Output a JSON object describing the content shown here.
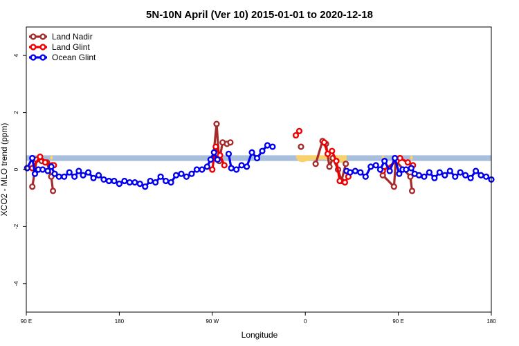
{
  "chart_data": {
    "type": "line",
    "title": "5N-10N April (Ver 10)   2015-01-01 to 2020-12-18",
    "xlabel": "Longitude",
    "ylabel": "XCO2 - MLO trend (ppm)",
    "xlim": [
      -90,
      180
    ],
    "ylim": [
      -5,
      5
    ],
    "x_ticks": [
      {
        "value": -90,
        "label": "90 E"
      },
      {
        "value": -36,
        "label": "180"
      },
      {
        "value": 18,
        "label": "90 W"
      },
      {
        "value": 72,
        "label": "0"
      },
      {
        "value": 126,
        "label": "90 E"
      },
      {
        "value": 180,
        "label": "180"
      }
    ],
    "y_ticks": [
      -4,
      -2,
      0,
      2,
      4
    ],
    "legend_position": "top-left",
    "band": {
      "y_low": 0.3,
      "y_high": 0.5,
      "color": "#a7bedd"
    },
    "highlight_color": "#f8d16c",
    "series": [
      {
        "name": "Land Nadir",
        "color": "#a52a2a",
        "segments": [
          [
            [
              -86.5,
              -0.6
            ],
            [
              -84,
              0.35
            ],
            [
              -81,
              0.3
            ],
            [
              -78,
              0.25
            ],
            [
              -75.5,
              -0.25
            ],
            [
              -74.5,
              -0.75
            ]
          ],
          [
            [
              18.5,
              0.4
            ],
            [
              20.5,
              1.6
            ],
            [
              22,
              0.3
            ],
            [
              24,
              0.95
            ],
            [
              26.5,
              0.9
            ],
            [
              28.5,
              0.95
            ]
          ],
          [
            [
              69.5,
              0.8
            ]
          ],
          [
            [
              78,
              0.2
            ],
            [
              82,
              1.0
            ],
            [
              84,
              0.9
            ],
            [
              86,
              0.1
            ],
            [
              88,
              0.4
            ],
            [
              91,
              0.0
            ],
            [
              93,
              -0.4
            ],
            [
              95.5,
              0.2
            ]
          ],
          [
            [
              117,
              -0.2
            ],
            [
              123.5,
              -0.6
            ],
            [
              124.5,
              0.3
            ],
            [
              133,
              -0.25
            ],
            [
              134,
              -0.75
            ]
          ]
        ]
      },
      {
        "name": "Land Glint",
        "color": "#ee0000",
        "segments": [
          [
            [
              -86.5,
              0.05
            ],
            [
              -82,
              0.45
            ],
            [
              -79,
              0.25
            ],
            [
              -75,
              0.15
            ],
            [
              -74,
              0.15
            ]
          ],
          [
            [
              18,
              0.0
            ],
            [
              20,
              0.8
            ],
            [
              22.5,
              0.5
            ],
            [
              25,
              0.15
            ]
          ],
          [
            [
              66.5,
              1.2
            ],
            [
              68.5,
              1.35
            ]
          ],
          [
            [
              83,
              0.95
            ],
            [
              85,
              0.55
            ],
            [
              87.5,
              0.65
            ],
            [
              90,
              0.3
            ],
            [
              92,
              -0.4
            ],
            [
              95,
              -0.45
            ],
            [
              97,
              -0.25
            ]
          ],
          [
            [
              117,
              -0.05
            ],
            [
              125,
              0.3
            ],
            [
              127,
              0.4
            ],
            [
              131.5,
              0.25
            ],
            [
              134.5,
              0.15
            ]
          ]
        ]
      },
      {
        "name": "Ocean Glint",
        "color": "#0000ee",
        "segments": [
          [
            [
              -89.5,
              0.05
            ],
            [
              -86.5,
              0.4
            ],
            [
              -85,
              -0.15
            ],
            [
              -83,
              0.0
            ],
            [
              -80.5,
              0.0
            ],
            [
              -77.5,
              -0.05
            ],
            [
              -75.5,
              0.1
            ],
            [
              -73.5,
              -0.15
            ],
            [
              -71,
              -0.25
            ],
            [
              -68,
              -0.25
            ],
            [
              -65,
              -0.1
            ],
            [
              -62,
              -0.25
            ],
            [
              -59.5,
              -0.05
            ],
            [
              -57,
              -0.2
            ],
            [
              -54,
              -0.1
            ],
            [
              -51,
              -0.3
            ],
            [
              -48,
              -0.2
            ],
            [
              -45,
              -0.35
            ],
            [
              -42,
              -0.4
            ],
            [
              -39,
              -0.4
            ],
            [
              -36,
              -0.5
            ],
            [
              -33,
              -0.4
            ],
            [
              -30,
              -0.45
            ],
            [
              -27,
              -0.45
            ],
            [
              -24,
              -0.5
            ],
            [
              -21,
              -0.6
            ],
            [
              -18,
              -0.4
            ],
            [
              -15,
              -0.45
            ],
            [
              -12,
              -0.25
            ],
            [
              -9,
              -0.4
            ],
            [
              -6,
              -0.45
            ],
            [
              -3,
              -0.2
            ],
            [
              0,
              -0.15
            ],
            [
              3,
              -0.25
            ],
            [
              6,
              -0.15
            ],
            [
              9,
              0.0
            ],
            [
              12,
              0.0
            ],
            [
              15,
              0.1
            ],
            [
              17,
              0.35
            ],
            [
              19,
              0.6
            ],
            [
              21,
              0.35
            ]
          ],
          [
            [
              27.5,
              0.55
            ],
            [
              29,
              0.05
            ],
            [
              32,
              0.0
            ],
            [
              35,
              0.15
            ],
            [
              38,
              0.1
            ],
            [
              41,
              0.6
            ],
            [
              44,
              0.4
            ],
            [
              47,
              0.65
            ],
            [
              50,
              0.85
            ],
            [
              53,
              0.8
            ]
          ],
          [
            [
              96,
              -0.05
            ],
            [
              98,
              -0.1
            ],
            [
              101,
              -0.05
            ],
            [
              104,
              -0.1
            ],
            [
              107,
              -0.25
            ],
            [
              110,
              0.1
            ],
            [
              113,
              0.15
            ],
            [
              115.5,
              0.0
            ],
            [
              118,
              0.3
            ],
            [
              121,
              -0.05
            ],
            [
              124,
              0.4
            ],
            [
              126.5,
              -0.15
            ],
            [
              128.5,
              0.0
            ],
            [
              130.5,
              0.0
            ],
            [
              133.5,
              0.05
            ],
            [
              135.5,
              -0.15
            ],
            [
              138,
              -0.2
            ],
            [
              141,
              -0.25
            ],
            [
              144,
              -0.1
            ],
            [
              147,
              -0.3
            ],
            [
              150,
              -0.1
            ],
            [
              153,
              -0.2
            ],
            [
              156,
              -0.05
            ],
            [
              159,
              -0.25
            ],
            [
              162,
              -0.1
            ],
            [
              165,
              -0.2
            ],
            [
              168,
              -0.3
            ],
            [
              171,
              -0.05
            ],
            [
              174,
              -0.2
            ],
            [
              177,
              -0.25
            ],
            [
              180,
              -0.35
            ]
          ]
        ]
      }
    ]
  }
}
